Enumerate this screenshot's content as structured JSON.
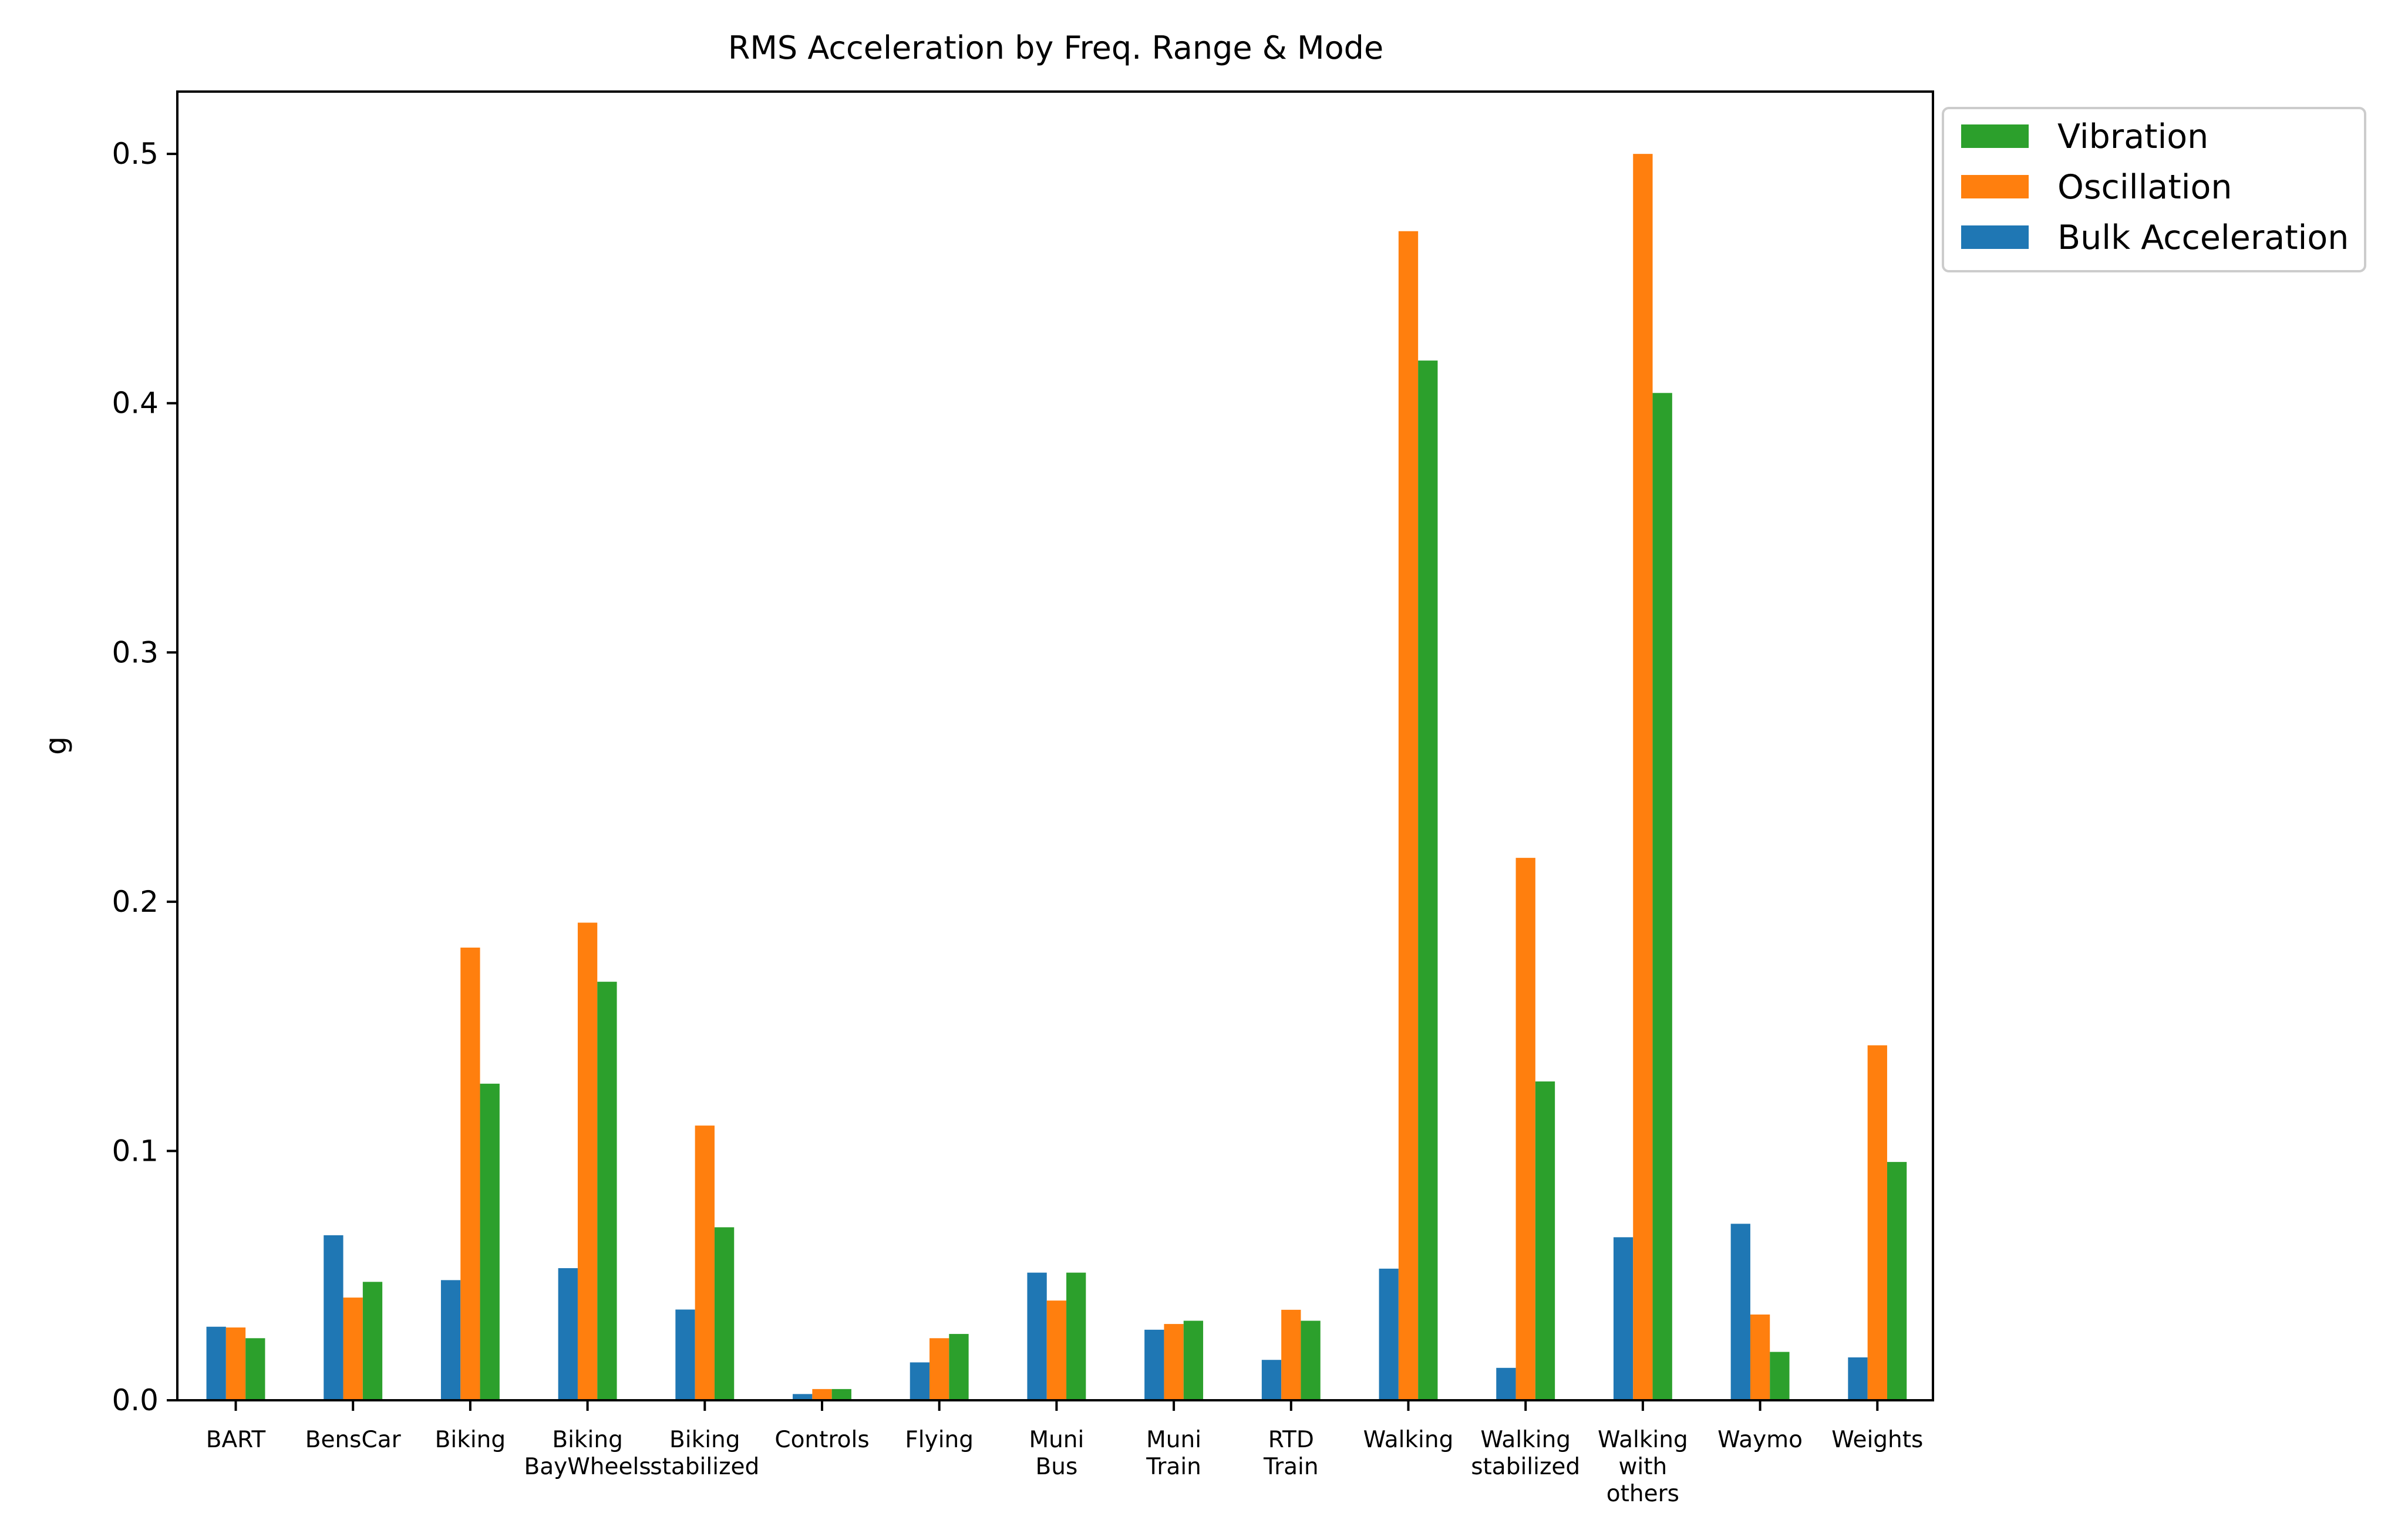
{
  "chart_data": {
    "type": "bar",
    "title": "RMS Acceleration by Freq. Range & Mode",
    "xlabel": "",
    "ylabel": "g",
    "ylim": [
      0,
      0.525
    ],
    "yticks": [
      "0.0",
      "0.1",
      "0.2",
      "0.3",
      "0.4",
      "0.5"
    ],
    "grid": false,
    "legend_position": "outside top-right",
    "categories": [
      [
        "BART"
      ],
      [
        "BensCar"
      ],
      [
        "Biking"
      ],
      [
        "Biking",
        "BayWheels"
      ],
      [
        "Biking",
        "stabilized"
      ],
      [
        "Controls"
      ],
      [
        "Flying"
      ],
      [
        "Muni",
        "Bus"
      ],
      [
        "Muni",
        "Train"
      ],
      [
        "RTD",
        "Train"
      ],
      [
        "Walking"
      ],
      [
        "Walking",
        "stabilized"
      ],
      [
        "Walking",
        "with",
        "others"
      ],
      [
        "Waymo"
      ],
      [
        "Weights"
      ]
    ],
    "series": [
      {
        "name": "Bulk Acceleration",
        "color": "#1f77b4",
        "values": [
          0.0295,
          0.0662,
          0.0482,
          0.053,
          0.0364,
          0.0025,
          0.0152,
          0.0512,
          0.0283,
          0.0162,
          0.0528,
          0.013,
          0.0654,
          0.0708,
          0.0172
        ]
      },
      {
        "name": "Oscillation",
        "color": "#ff7f0e",
        "values": [
          0.0292,
          0.0412,
          0.1816,
          0.1916,
          0.1102,
          0.0045,
          0.0249,
          0.04,
          0.0306,
          0.0363,
          0.469,
          0.2176,
          0.5,
          0.0344,
          0.1424
        ]
      },
      {
        "name": "Vibration",
        "color": "#2ca02c",
        "values": [
          0.0249,
          0.0475,
          0.127,
          0.1679,
          0.0694,
          0.0045,
          0.0266,
          0.0512,
          0.0319,
          0.0319,
          0.4171,
          0.1279,
          0.4041,
          0.0194,
          0.0956
        ]
      }
    ],
    "legend_order": [
      "Vibration",
      "Oscillation",
      "Bulk Acceleration"
    ]
  }
}
